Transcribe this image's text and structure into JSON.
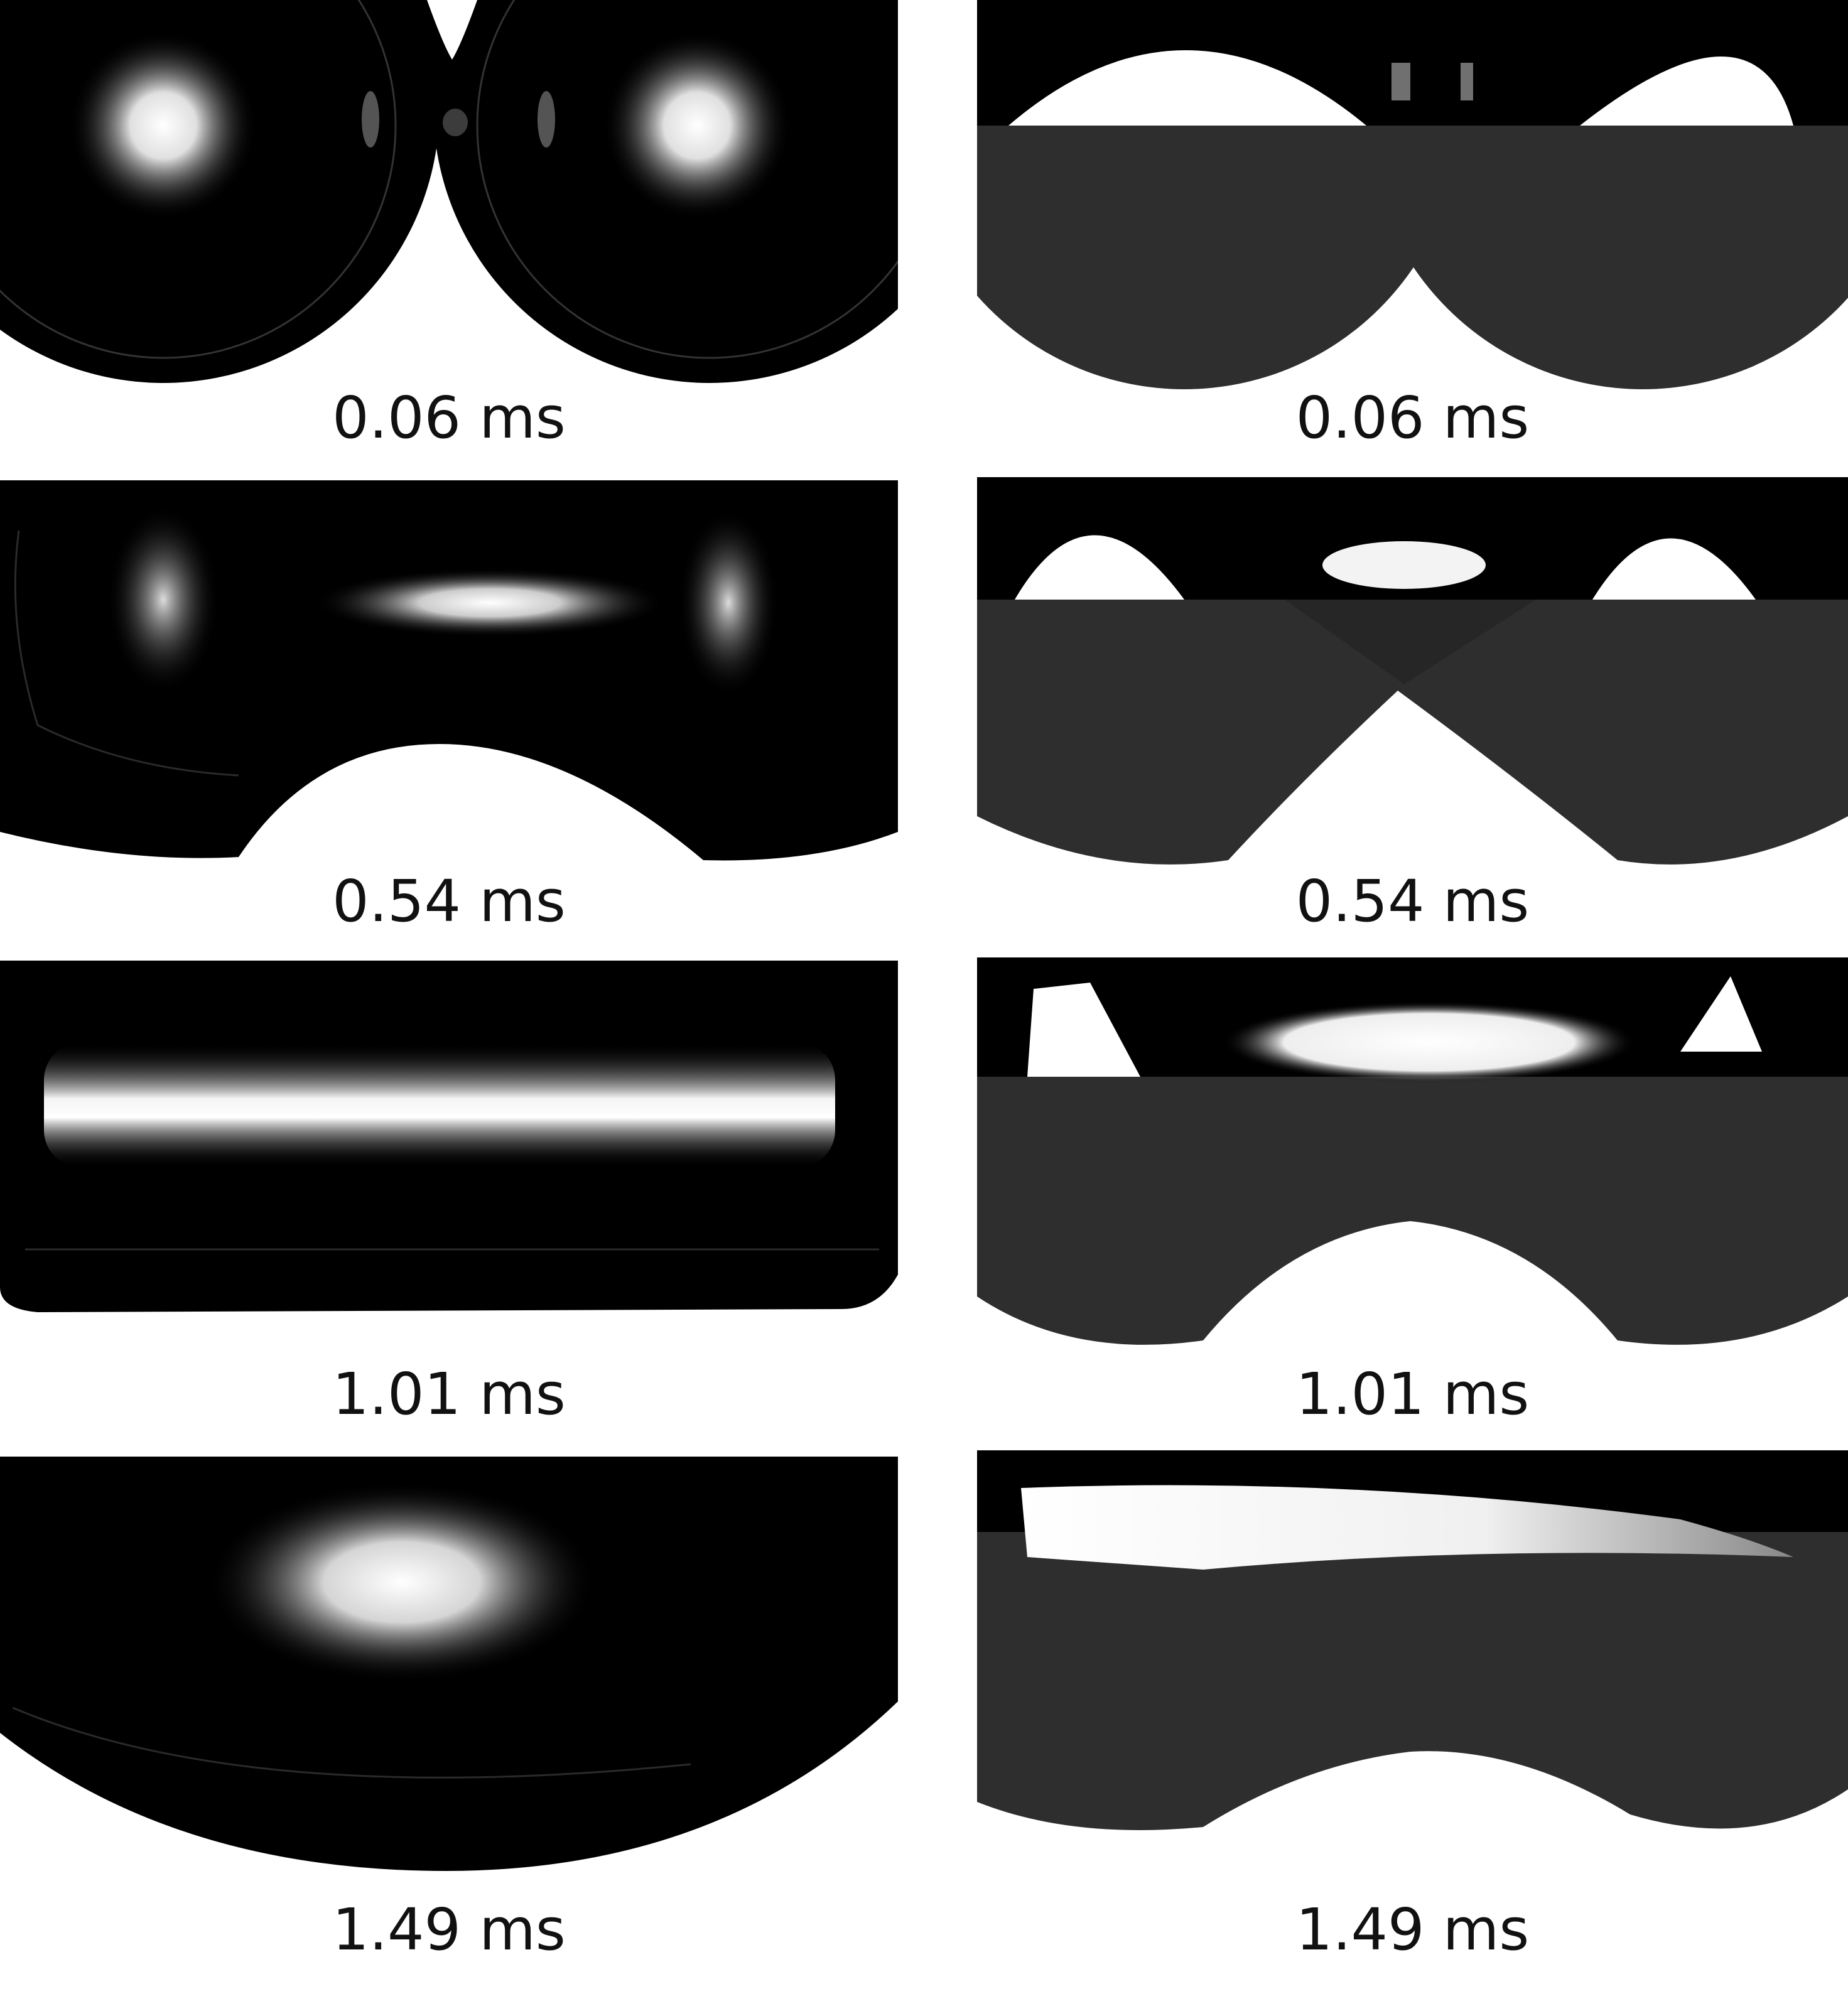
{
  "timestamps": {
    "left": [
      "0.06 ms",
      "0.54 ms",
      "1.01 ms",
      "1.49 ms"
    ],
    "right": [
      "0.06 ms",
      "0.54 ms",
      "1.01 ms",
      "1.49 ms"
    ]
  },
  "colors": {
    "background": "#ffffff",
    "drop_dark": "#000000",
    "drop_gray": "#2e2e2e",
    "highlight": "#ffffff"
  }
}
